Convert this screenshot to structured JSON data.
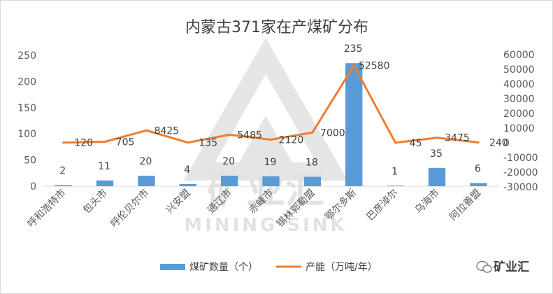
{
  "chart_data": {
    "type": "bar",
    "title": "内蒙古371家在产煤矿分布",
    "categories": [
      "呼和浩特市",
      "包头市",
      "呼伦贝尔市",
      "兴安盟",
      "通辽市",
      "赤峰市",
      "锡林郭勒盟",
      "鄂尔多斯",
      "巴彦淖尔",
      "乌海市",
      "阿拉善盟"
    ],
    "series": [
      {
        "name": "煤矿数量（个）",
        "type": "bar",
        "axis": "left",
        "values": [
          2,
          11,
          20,
          4,
          20,
          19,
          18,
          235,
          1,
          35,
          6
        ]
      },
      {
        "name": "产能（万吨/年）",
        "type": "line",
        "axis": "right",
        "values": [
          120,
          705,
          8425,
          135,
          5485,
          2120,
          7000,
          52580,
          45,
          3475,
          240
        ]
      }
    ],
    "y_left": {
      "min": 0,
      "max": 250,
      "ticks": [
        0,
        50,
        100,
        150,
        200,
        250
      ]
    },
    "y_right": {
      "min": -30000,
      "max": 60000,
      "ticks": [
        -30000,
        -20000,
        -10000,
        0,
        10000,
        20000,
        30000,
        40000,
        50000,
        60000
      ]
    },
    "grid": false,
    "legend_position": "bottom",
    "colors": {
      "bar": "#5b9bd5",
      "line": "#ed7d31"
    }
  },
  "watermark": {
    "text_main": "矿业汇",
    "text_sub": "MINING SINK"
  },
  "brand": {
    "text": "矿业汇"
  }
}
